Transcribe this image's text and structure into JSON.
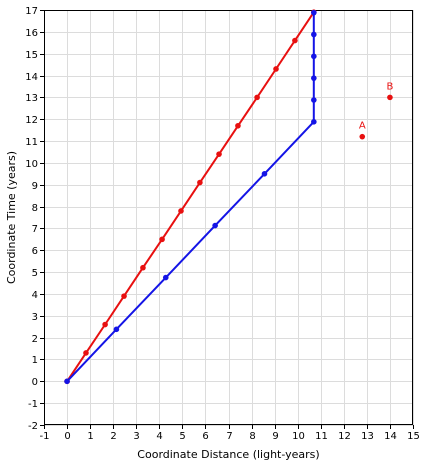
{
  "chart_data": {
    "type": "scatter",
    "title": "",
    "xlabel": "Coordinate Distance (light-years)",
    "ylabel": "Coordinate Time (years)",
    "xlim": [
      -1,
      15
    ],
    "ylim": [
      -2,
      17
    ],
    "xticks": [
      -1,
      0,
      1,
      2,
      3,
      4,
      5,
      6,
      7,
      8,
      9,
      10,
      11,
      12,
      13,
      14,
      15
    ],
    "yticks": [
      -2,
      -1,
      0,
      1,
      2,
      3,
      4,
      5,
      6,
      7,
      8,
      9,
      10,
      11,
      12,
      13,
      14,
      15,
      16,
      17
    ],
    "grid": true,
    "legend": "none",
    "series": [
      {
        "color": "#e81010",
        "line": true,
        "values": [
          {
            "x": 0,
            "y": 0
          },
          {
            "x": 0.82,
            "y": 1.3
          },
          {
            "x": 1.65,
            "y": 2.6
          },
          {
            "x": 2.47,
            "y": 3.9
          },
          {
            "x": 3.29,
            "y": 5.2
          },
          {
            "x": 4.12,
            "y": 6.5
          },
          {
            "x": 4.94,
            "y": 7.8
          },
          {
            "x": 5.76,
            "y": 9.1
          },
          {
            "x": 6.59,
            "y": 10.4
          },
          {
            "x": 7.41,
            "y": 11.7
          },
          {
            "x": 8.24,
            "y": 13.0
          },
          {
            "x": 9.06,
            "y": 14.3
          },
          {
            "x": 9.88,
            "y": 15.6
          },
          {
            "x": 10.7,
            "y": 16.9
          }
        ]
      },
      {
        "color": "#1414e6",
        "line": true,
        "values": [
          {
            "x": 0,
            "y": 0
          },
          {
            "x": 2.14,
            "y": 2.38
          },
          {
            "x": 4.28,
            "y": 4.75
          },
          {
            "x": 6.42,
            "y": 7.13
          },
          {
            "x": 8.56,
            "y": 9.5
          },
          {
            "x": 10.7,
            "y": 11.88
          },
          {
            "x": 10.7,
            "y": 12.88
          },
          {
            "x": 10.7,
            "y": 13.88
          },
          {
            "x": 10.7,
            "y": 14.88
          },
          {
            "x": 10.7,
            "y": 15.88
          },
          {
            "x": 10.7,
            "y": 16.88
          }
        ]
      }
    ],
    "annotations": [
      {
        "label": "A",
        "x": 12.8,
        "y": 11.2,
        "color": "#e81010"
      },
      {
        "label": "B",
        "x": 14.0,
        "y": 13.0,
        "color": "#e81010"
      }
    ]
  }
}
